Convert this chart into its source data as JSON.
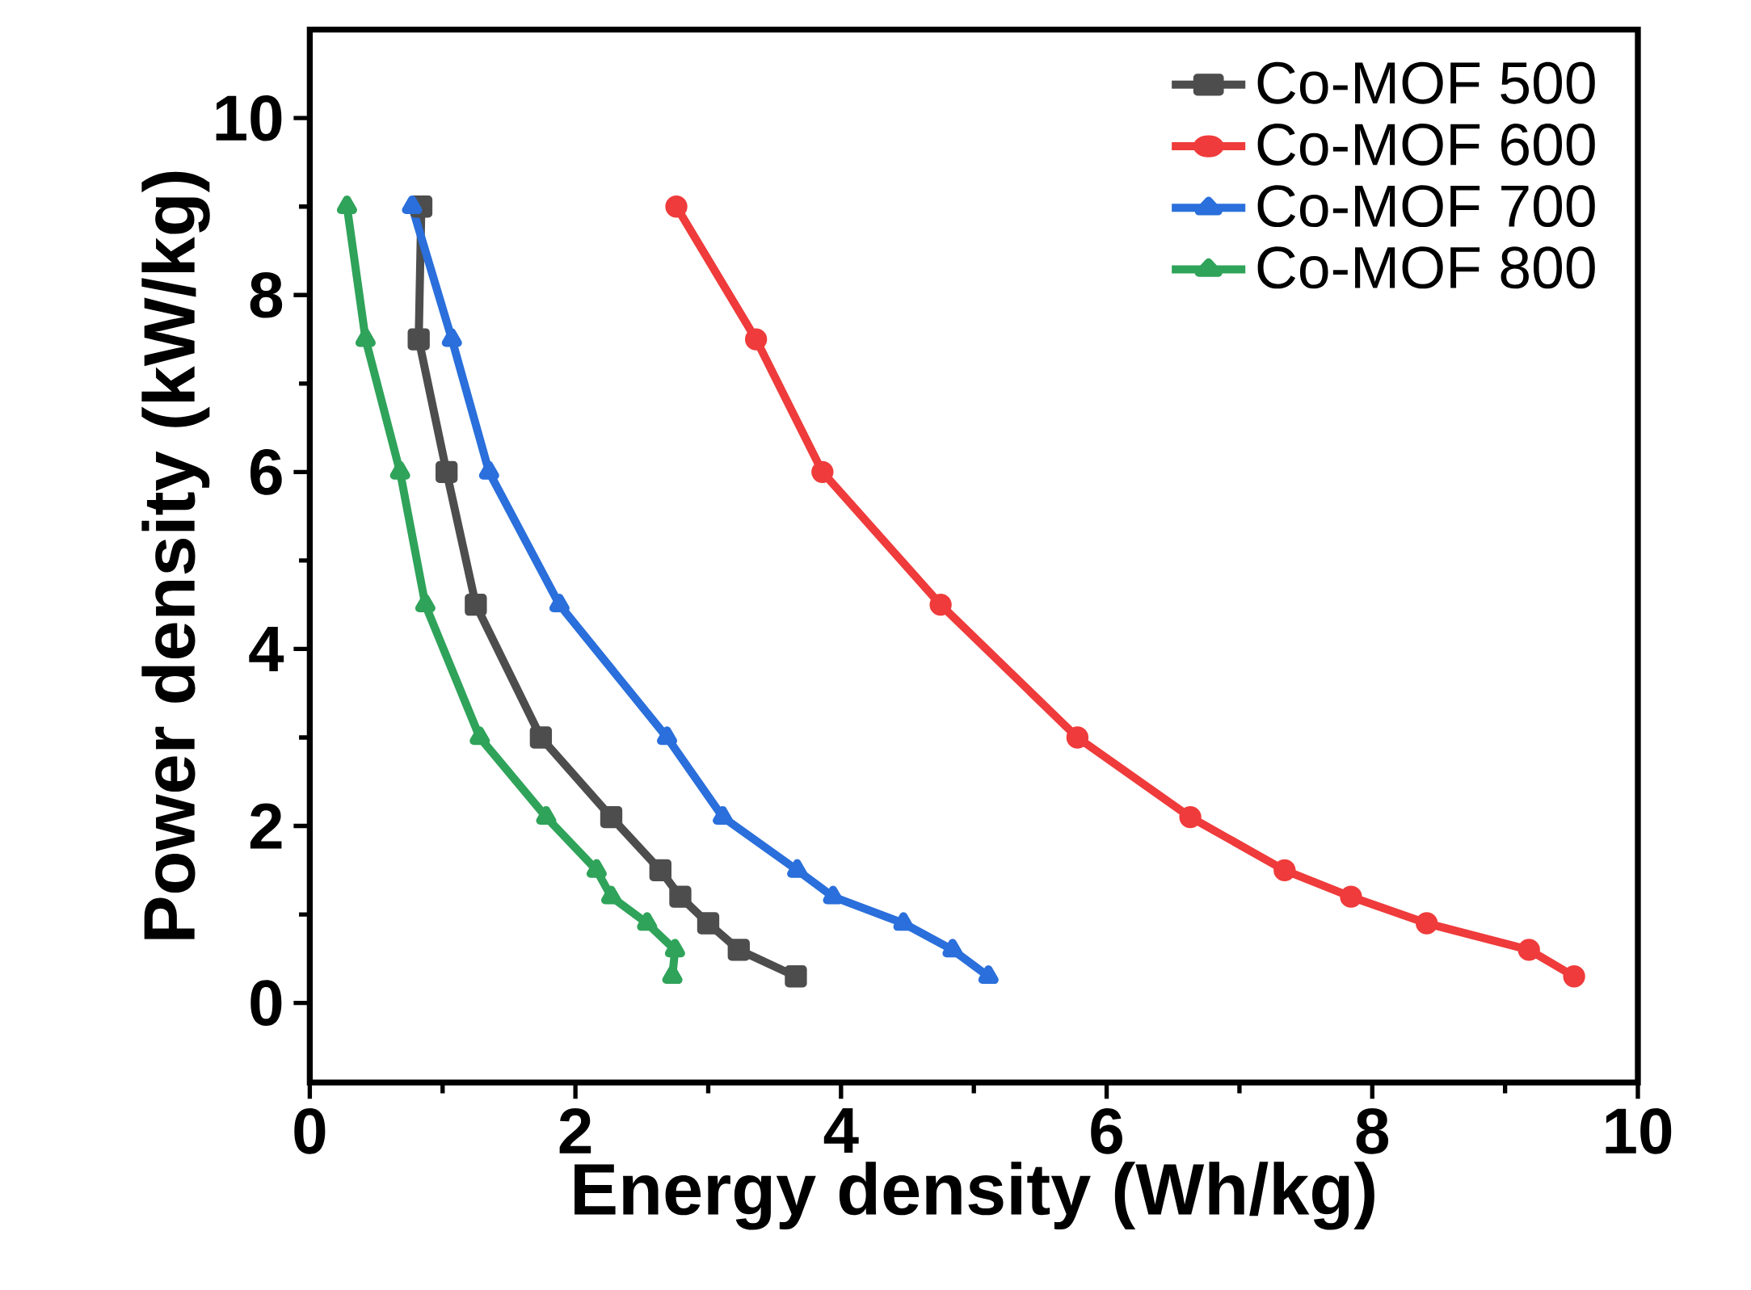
{
  "chart_data": {
    "type": "line",
    "xlabel": "Energy density (Wh/kg)",
    "ylabel": "Power density (kW/kg)",
    "xlim": [
      0,
      10
    ],
    "ylim": [
      -0.9,
      11
    ],
    "xticks": [
      0,
      2,
      4,
      6,
      8,
      10
    ],
    "yticks": [
      0,
      2,
      4,
      6,
      8,
      10
    ],
    "legend": "top right",
    "grid": false,
    "series": [
      {
        "name": "Co-MOF 500",
        "color": "#4d4d4d",
        "marker": "square",
        "x": [
          0.84,
          0.82,
          1.03,
          1.25,
          1.74,
          2.27,
          2.64,
          2.79,
          3.0,
          3.23,
          3.66
        ],
        "values": [
          9,
          7.5,
          6,
          4.5,
          3,
          2.1,
          1.5,
          1.2,
          0.9,
          0.6,
          0.3
        ]
      },
      {
        "name": "Co-MOF 600",
        "color": "#ef3b3b",
        "marker": "circle",
        "x": [
          2.76,
          3.36,
          3.86,
          4.75,
          5.78,
          6.63,
          7.34,
          7.84,
          8.41,
          9.18,
          9.52
        ],
        "values": [
          9,
          7.5,
          6,
          4.5,
          3,
          2.1,
          1.5,
          1.2,
          0.9,
          0.6,
          0.3
        ]
      },
      {
        "name": "Co-MOF 700",
        "color": "#2a6fdb",
        "marker": "triangle",
        "x": [
          0.77,
          1.07,
          1.35,
          1.88,
          2.69,
          3.11,
          3.67,
          3.94,
          4.47,
          4.84,
          5.11
        ],
        "values": [
          9,
          7.5,
          6,
          4.5,
          3,
          2.1,
          1.5,
          1.2,
          0.9,
          0.6,
          0.3
        ]
      },
      {
        "name": "Co-MOF 800",
        "color": "#2fa35a",
        "marker": "triangle",
        "x": [
          0.28,
          0.42,
          0.68,
          0.87,
          1.28,
          1.78,
          2.16,
          2.27,
          2.54,
          2.75,
          2.73
        ],
        "values": [
          9,
          7.5,
          6,
          4.5,
          3,
          2.1,
          1.5,
          1.2,
          0.9,
          0.6,
          0.3
        ]
      }
    ]
  }
}
